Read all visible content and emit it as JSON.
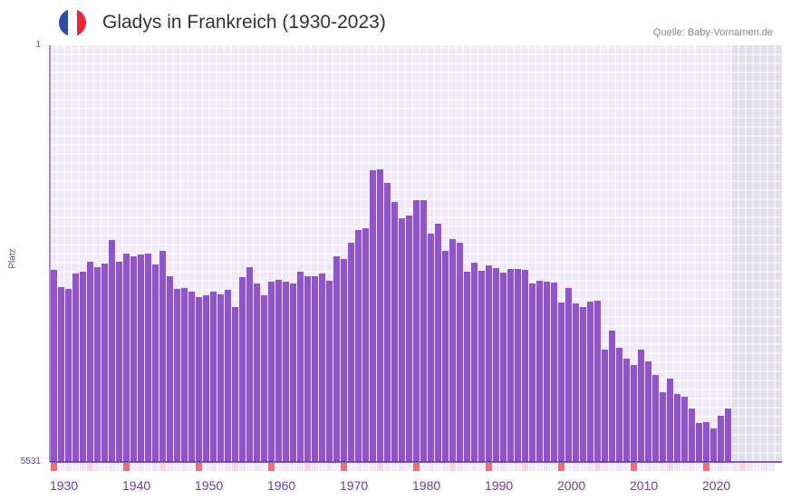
{
  "header": {
    "title": "Gladys in Frankreich (1930-2023)",
    "source": "Quelle: Baby-Vornamen.de",
    "flag_colors": [
      "#2c4fa3",
      "#ffffff",
      "#e8293a"
    ]
  },
  "colors": {
    "bar": "#8e55c8",
    "plot_bg": "#efe9f9",
    "future_bg": "#e3dfec",
    "decade_marker": "#e57373",
    "half_marker": "#f4d6df",
    "axis_text": "#6a3fa0"
  },
  "chart_data": {
    "type": "bar",
    "title": "Gladys in Frankreich (1930-2023)",
    "xlabel": "",
    "ylabel": "Platz",
    "ylim": [
      1,
      5531
    ],
    "y_inverted": true,
    "xlim": [
      1930,
      2030
    ],
    "x_ticks": [
      1930,
      1940,
      1950,
      1960,
      1970,
      1980,
      1990,
      2000,
      2010,
      2020
    ],
    "y_ticks": [
      1,
      5531
    ],
    "x_start": 1930,
    "values": [
      2982,
      3210,
      3234,
      3030,
      3006,
      2874,
      2946,
      2898,
      2585,
      2874,
      2766,
      2802,
      2778,
      2766,
      2910,
      2730,
      3066,
      3234,
      3222,
      3270,
      3343,
      3319,
      3270,
      3307,
      3247,
      3475,
      3078,
      2946,
      3162,
      3319,
      3138,
      3114,
      3138,
      3162,
      3006,
      3066,
      3066,
      3030,
      3126,
      2802,
      2838,
      2622,
      2453,
      2429,
      1660,
      1648,
      1828,
      2081,
      2297,
      2261,
      2057,
      2057,
      2501,
      2369,
      2730,
      2573,
      2622,
      3006,
      2886,
      2994,
      2922,
      2958,
      3018,
      2970,
      2970,
      2982,
      3162,
      3126,
      3138,
      3150,
      3415,
      3222,
      3427,
      3475,
      3403,
      3391,
      4040,
      3788,
      4016,
      4160,
      4244,
      4040,
      4196,
      4377,
      4605,
      4425,
      4629,
      4665,
      4822,
      5014,
      5002,
      5086,
      4918,
      4822
    ]
  }
}
